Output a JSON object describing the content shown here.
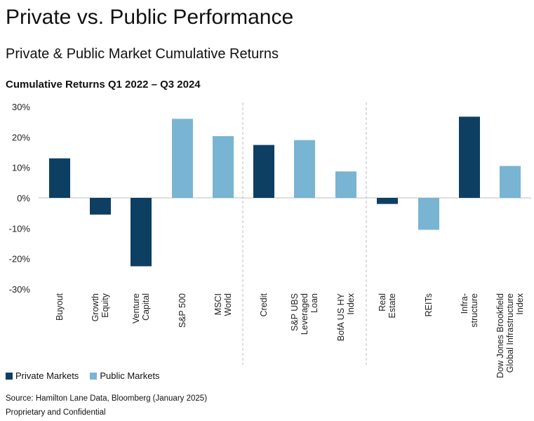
{
  "header": {
    "title": "Private vs. Public Performance",
    "subtitle": "Private & Public Market Cumulative Returns"
  },
  "chart_data": {
    "type": "bar",
    "title": "Cumulative Returns Q1 2022 – Q3 2024",
    "ylim": [
      -30,
      30
    ],
    "y_ticks": [
      "30%",
      "20%",
      "10%",
      "0%",
      "-10%",
      "-20%",
      "-30%"
    ],
    "y_tick_values": [
      30,
      20,
      10,
      0,
      -10,
      -20,
      -30
    ],
    "grid": false,
    "legend_placement": "bottom-left",
    "series_colors": {
      "Private Markets": "#0d3f63",
      "Public Markets": "#79b4d3"
    },
    "categories": [
      "Buyout",
      "Growth Equity",
      "Venture Capital",
      "S&P 500",
      "MSCI World",
      "Credit",
      "S&P UBS Leveraged Loan",
      "BofA US HY Index",
      "Real Estate",
      "REITs",
      "Infra-structure",
      "Dow Jones Brookfield Global Infrastructure Index"
    ],
    "category_label_lines": [
      [
        "Buyout"
      ],
      [
        "Growth",
        "Equity"
      ],
      [
        "Venture",
        "Capital"
      ],
      [
        "S&P 500"
      ],
      [
        "MSCI",
        "World"
      ],
      [
        "Credit"
      ],
      [
        "S&P UBS",
        "Leveraged",
        "Loan"
      ],
      [
        "BofA US HY",
        "Index"
      ],
      [
        "Real",
        "Estate"
      ],
      [
        "REITs"
      ],
      [
        "Infra-",
        "structure"
      ],
      [
        "Dow Jones Brookfield",
        "Global Infrastructure",
        "Index"
      ]
    ],
    "values": [
      13,
      -5.5,
      -22.5,
      26,
      20.3,
      17.4,
      19,
      8.7,
      -2,
      -10.5,
      26.7,
      10.5
    ],
    "series_membership": [
      "Private Markets",
      "Private Markets",
      "Private Markets",
      "Public Markets",
      "Public Markets",
      "Private Markets",
      "Public Markets",
      "Public Markets",
      "Private Markets",
      "Public Markets",
      "Private Markets",
      "Public Markets"
    ],
    "legend": [
      "Private Markets",
      "Public Markets"
    ]
  },
  "footer": {
    "source": "Source: Hamilton Lane Data, Bloomberg (January 2025)",
    "confidential": "Proprietary and Confidential"
  }
}
